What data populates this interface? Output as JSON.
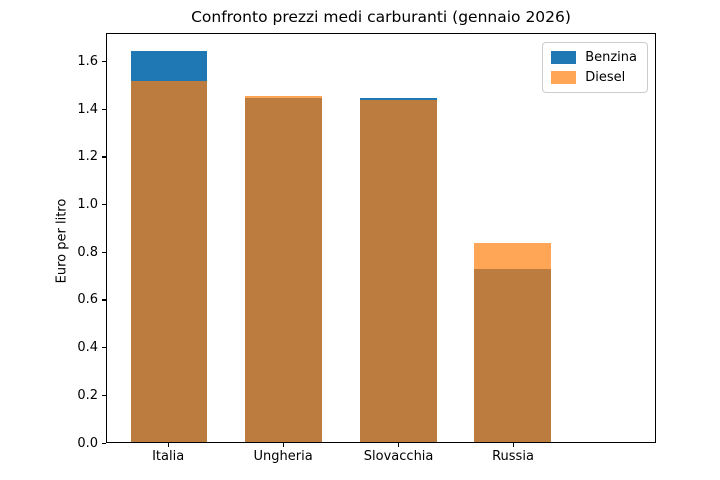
{
  "chart_data": {
    "type": "bar",
    "mode": "overlapped",
    "title": "Confronto prezzi medi carburanti (gennaio 2026)",
    "xlabel": "",
    "ylabel": "Euro per litro",
    "categories": [
      "Italia",
      "Ungheria",
      "Slovacchia",
      "Russia"
    ],
    "series": [
      {
        "name": "Benzina",
        "color": "#1f77b4",
        "alpha": 1.0,
        "values": [
          1.65,
          1.45,
          1.45,
          0.73
        ]
      },
      {
        "name": "Diesel",
        "color": "#ff7f0e",
        "alpha": 0.7,
        "values": [
          1.52,
          1.46,
          1.44,
          0.84
        ]
      }
    ],
    "ylim": [
      0,
      1.72
    ],
    "yticks": [
      "0.0",
      "0.2",
      "0.4",
      "0.6",
      "0.8",
      "1.0",
      "1.2",
      "1.4",
      "1.6"
    ],
    "grid": false,
    "legend_position": "upper right",
    "colors": {
      "axes_spine": "#000000",
      "background": "#ffffff",
      "overlap_brown": "#bc7d40",
      "diesel_on_white": "#ffa556"
    }
  }
}
